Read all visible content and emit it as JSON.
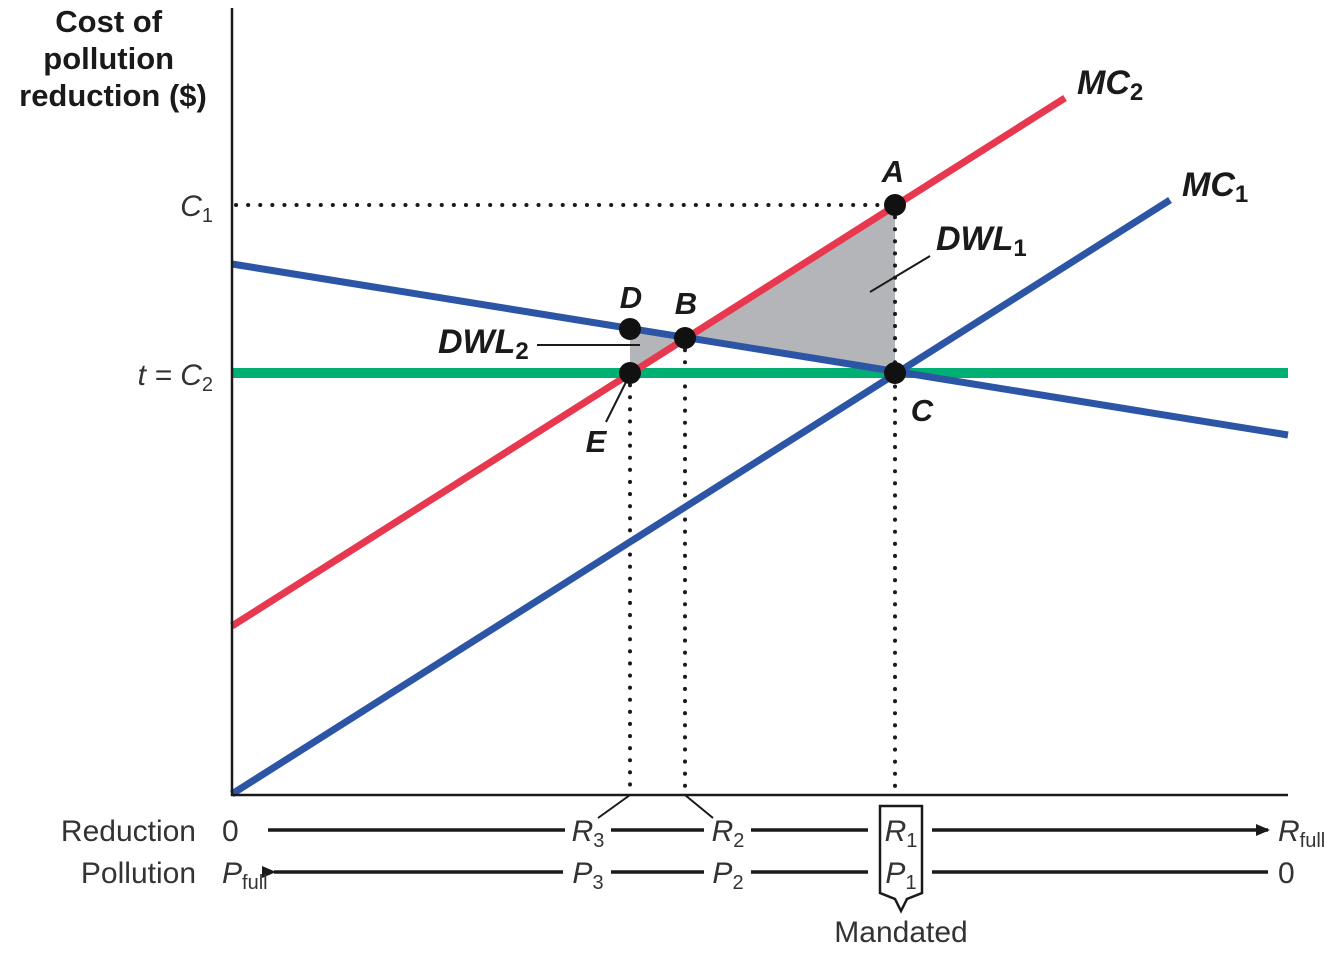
{
  "y_axis": {
    "label_lines": [
      "Cost of",
      "pollution",
      "reduction ($)"
    ],
    "ticks": [
      {
        "prefix": "",
        "sym": "C",
        "sub": "1"
      },
      {
        "prefix": "t = ",
        "sym": "C",
        "sub": "2"
      }
    ]
  },
  "curves": {
    "mc2": {
      "base": "MC",
      "sub": "2",
      "color": "#e8384f"
    },
    "mc1": {
      "base": "MC",
      "sub": "1",
      "color": "#2c55a6"
    },
    "benefit": {
      "color": "#2c55a6"
    },
    "tax": {
      "color": "#00b072"
    }
  },
  "points": [
    "A",
    "B",
    "C",
    "D",
    "E"
  ],
  "areas": {
    "dwl1": {
      "base": "DWL",
      "sub": "1",
      "fill": "#b3b5b8"
    },
    "dwl2": {
      "base": "DWL",
      "sub": "2",
      "fill": "#b3b5b8"
    }
  },
  "bottom": {
    "reduction": {
      "label": "Reduction",
      "start": "0",
      "r3": {
        "sym": "R",
        "sub": "3"
      },
      "r2": {
        "sym": "R",
        "sub": "2"
      },
      "r1": {
        "sym": "R",
        "sub": "1"
      },
      "end": {
        "sym": "R",
        "sub": "full"
      }
    },
    "pollution": {
      "label": "Pollution",
      "start": {
        "sym": "P",
        "sub": "full"
      },
      "p3": {
        "sym": "P",
        "sub": "3"
      },
      "p2": {
        "sym": "P",
        "sub": "2"
      },
      "p1": {
        "sym": "P",
        "sub": "1"
      },
      "end": "0"
    },
    "mandated_label": "Mandated"
  }
}
